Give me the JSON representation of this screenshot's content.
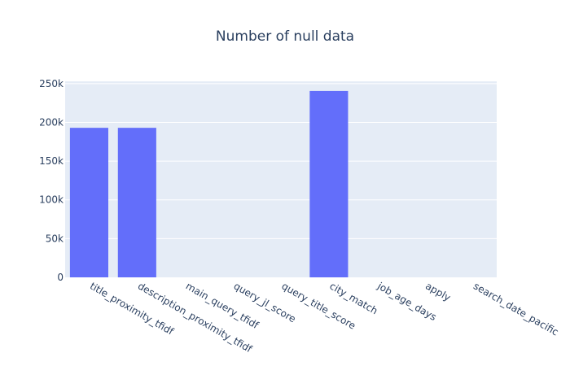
{
  "chart_data": {
    "type": "bar",
    "title": "Number of null data",
    "xlabel": "",
    "ylabel": "",
    "categories": [
      "title_proximity_tfidf",
      "description_proximity_tfidf",
      "main_query_tfidf",
      "query_jl_score",
      "query_title_score",
      "city_match",
      "job_age_days",
      "apply",
      "search_date_pacific"
    ],
    "values": [
      193000,
      193000,
      0,
      0,
      0,
      240500,
      0,
      0,
      0
    ],
    "ylim": [
      0,
      253000
    ],
    "yticks": [
      0,
      50000,
      100000,
      150000,
      200000,
      250000
    ],
    "ytick_labels": [
      "0",
      "50k",
      "100k",
      "150k",
      "200k",
      "250k"
    ],
    "grid": true,
    "legend": "none",
    "colors": {
      "bar": "#636efa",
      "plot_bg": "#e5ecf6",
      "grid": "#ffffff",
      "text": "#2a3f5f"
    }
  }
}
